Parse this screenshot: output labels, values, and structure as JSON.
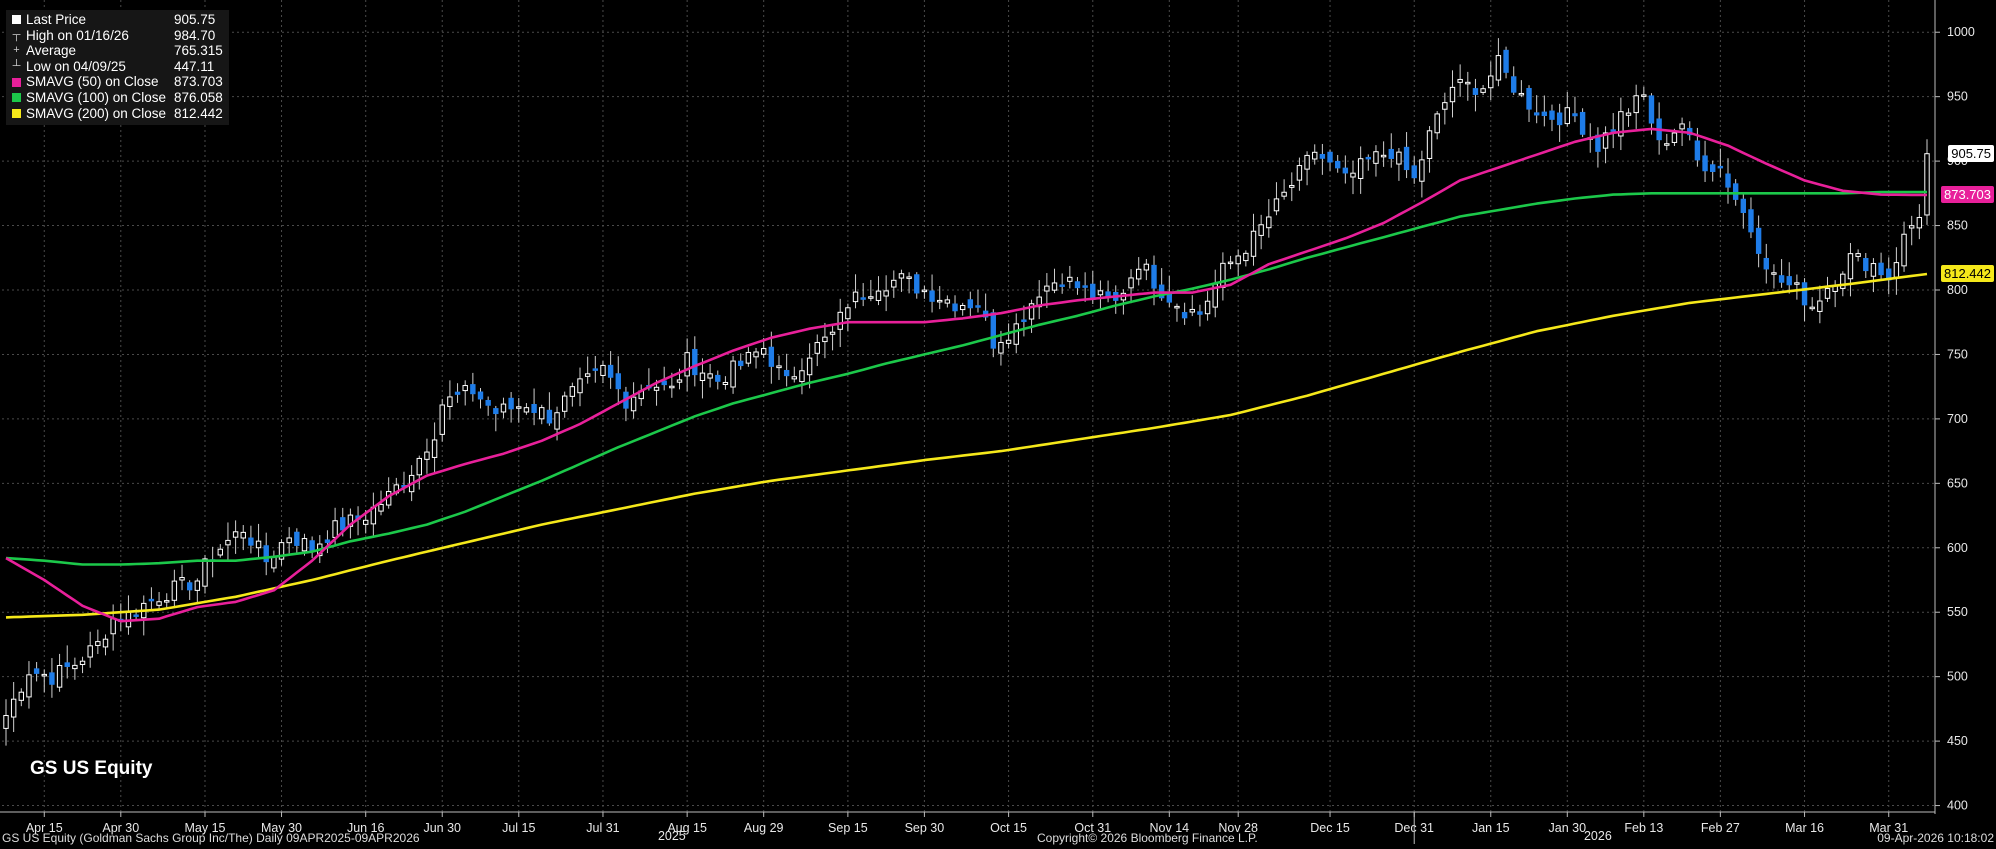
{
  "legend": [
    {
      "label": "Last Price",
      "value": "905.75",
      "marker": "square",
      "color": "#ffffff"
    },
    {
      "label": "High on 01/16/26",
      "value": "984.70",
      "marker": "high",
      "color": "#cccccc"
    },
    {
      "label": "Average",
      "value": "765.315",
      "marker": "avg",
      "color": "#cccccc"
    },
    {
      "label": "Low on 04/09/25",
      "value": "447.11",
      "marker": "low",
      "color": "#cccccc"
    },
    {
      "label": "SMAVG (50)  on Close",
      "value": "873.703",
      "marker": "square",
      "color": "#e8209a"
    },
    {
      "label": "SMAVG (100)  on Close",
      "value": "876.058",
      "marker": "square",
      "color": "#1cc84a"
    },
    {
      "label": "SMAVG (200)  on Close",
      "value": "812.442",
      "marker": "square",
      "color": "#f5e81a"
    }
  ],
  "ticker_label": "GS US Equity",
  "footer": {
    "left": "GS US Equity (Goldman Sachs Group Inc/The) Daily 09APR2025-09APR2026",
    "center": "Copyright© 2026 Bloomberg Finance L.P.",
    "right": "09-Apr-2026 10:18:02"
  },
  "price_tags": [
    {
      "value": "905.75",
      "bg": "#ffffff",
      "fg": "#000000"
    },
    {
      "value": "873.703",
      "bg": "#e8209a",
      "fg": "#ffffff"
    },
    {
      "value": "812.442",
      "bg": "#f5e81a",
      "fg": "#000000"
    }
  ],
  "chart_data": {
    "type": "candlestick",
    "y_ticks": [
      400,
      450,
      500,
      550,
      600,
      650,
      700,
      750,
      800,
      850,
      900,
      950,
      1000
    ],
    "ylim": [
      395,
      1025
    ],
    "x_ticks": [
      "Apr 15",
      "Apr 30",
      "May 15",
      "May 30",
      "Jun 16",
      "Jun 30",
      "Jul 15",
      "Jul 31",
      "Aug 15",
      "Aug 29",
      "Sep 15",
      "Sep 30",
      "Oct 15",
      "Oct 31",
      "Nov 14",
      "Nov 28",
      "Dec 15",
      "Dec 31",
      "Jan 15",
      "Jan 30",
      "Feb 13",
      "Feb 27",
      "Mar 16",
      "Mar 31"
    ],
    "x_tick_index": [
      5,
      15,
      26,
      36,
      47,
      57,
      67,
      78,
      89,
      99,
      110,
      120,
      131,
      142,
      152,
      161,
      173,
      184,
      194,
      204,
      214,
      224,
      235,
      246
    ],
    "year_labels": [
      {
        "label": "2025",
        "index": 87
      },
      {
        "label": "2026",
        "index": 208
      }
    ],
    "n_days": 252,
    "grid": true,
    "colors": {
      "up": "#ffffff",
      "down": "#1e7ce8",
      "sma50": "#e8209a",
      "sma100": "#1cc84a",
      "sma200": "#f5e81a"
    },
    "close_anchors": [
      [
        0,
        470
      ],
      [
        3,
        505
      ],
      [
        6,
        500
      ],
      [
        9,
        510
      ],
      [
        12,
        525
      ],
      [
        14,
        545
      ],
      [
        16,
        548
      ],
      [
        19,
        560
      ],
      [
        22,
        568
      ],
      [
        25,
        575
      ],
      [
        27,
        595
      ],
      [
        31,
        615
      ],
      [
        34,
        590
      ],
      [
        37,
        610
      ],
      [
        40,
        600
      ],
      [
        43,
        615
      ],
      [
        45,
        620
      ],
      [
        47,
        625
      ],
      [
        50,
        640
      ],
      [
        53,
        660
      ],
      [
        56,
        690
      ],
      [
        57,
        712
      ],
      [
        61,
        722
      ],
      [
        64,
        705
      ],
      [
        68,
        712
      ],
      [
        71,
        702
      ],
      [
        74,
        720
      ],
      [
        78,
        738
      ],
      [
        81,
        715
      ],
      [
        84,
        728
      ],
      [
        87,
        722
      ],
      [
        89,
        745
      ],
      [
        93,
        730
      ],
      [
        96,
        742
      ],
      [
        99,
        755
      ],
      [
        102,
        728
      ],
      [
        105,
        752
      ],
      [
        108,
        765
      ],
      [
        110,
        790
      ],
      [
        114,
        805
      ],
      [
        117,
        808
      ],
      [
        120,
        800
      ],
      [
        124,
        790
      ],
      [
        127,
        790
      ],
      [
        129,
        760
      ],
      [
        132,
        772
      ],
      [
        135,
        800
      ],
      [
        138,
        810
      ],
      [
        142,
        795
      ],
      [
        145,
        790
      ],
      [
        148,
        822
      ],
      [
        151,
        800
      ],
      [
        154,
        785
      ],
      [
        156,
        782
      ],
      [
        159,
        815
      ],
      [
        163,
        840
      ],
      [
        166,
        865
      ],
      [
        169,
        890
      ],
      [
        171,
        908
      ],
      [
        175,
        885
      ],
      [
        178,
        900
      ],
      [
        181,
        908
      ],
      [
        184,
        885
      ],
      [
        186,
        920
      ],
      [
        189,
        958
      ],
      [
        193,
        958
      ],
      [
        195,
        975
      ],
      [
        198,
        950
      ],
      [
        201,
        935
      ],
      [
        205,
        935
      ],
      [
        208,
        912
      ],
      [
        211,
        935
      ],
      [
        214,
        950
      ],
      [
        216,
        912
      ],
      [
        219,
        930
      ],
      [
        221,
        900
      ],
      [
        224,
        895
      ],
      [
        227,
        860
      ],
      [
        231,
        810
      ],
      [
        234,
        800
      ],
      [
        236,
        788
      ],
      [
        239,
        810
      ],
      [
        241,
        825
      ],
      [
        244,
        820
      ],
      [
        246,
        810
      ],
      [
        248,
        840
      ],
      [
        250,
        860
      ],
      [
        251,
        905.75
      ]
    ],
    "sma50_anchors": [
      [
        0,
        592
      ],
      [
        5,
        575
      ],
      [
        10,
        555
      ],
      [
        15,
        543
      ],
      [
        20,
        545
      ],
      [
        25,
        554
      ],
      [
        30,
        558
      ],
      [
        35,
        567
      ],
      [
        40,
        590
      ],
      [
        45,
        618
      ],
      [
        50,
        640
      ],
      [
        55,
        656
      ],
      [
        60,
        665
      ],
      [
        65,
        673
      ],
      [
        70,
        683
      ],
      [
        75,
        696
      ],
      [
        80,
        712
      ],
      [
        85,
        728
      ],
      [
        90,
        741
      ],
      [
        95,
        753
      ],
      [
        100,
        763
      ],
      [
        105,
        770
      ],
      [
        110,
        775
      ],
      [
        115,
        775
      ],
      [
        120,
        775
      ],
      [
        125,
        778
      ],
      [
        130,
        782
      ],
      [
        135,
        788
      ],
      [
        140,
        792
      ],
      [
        145,
        795
      ],
      [
        150,
        798
      ],
      [
        155,
        798
      ],
      [
        160,
        804
      ],
      [
        165,
        820
      ],
      [
        170,
        830
      ],
      [
        175,
        840
      ],
      [
        180,
        852
      ],
      [
        185,
        868
      ],
      [
        190,
        885
      ],
      [
        195,
        895
      ],
      [
        200,
        905
      ],
      [
        205,
        915
      ],
      [
        210,
        922
      ],
      [
        215,
        925
      ],
      [
        220,
        922
      ],
      [
        225,
        912
      ],
      [
        230,
        898
      ],
      [
        235,
        885
      ],
      [
        240,
        877
      ],
      [
        245,
        874
      ],
      [
        251,
        873.703
      ]
    ],
    "sma100_anchors": [
      [
        0,
        592
      ],
      [
        5,
        590
      ],
      [
        10,
        587
      ],
      [
        15,
        587
      ],
      [
        20,
        588
      ],
      [
        25,
        590
      ],
      [
        30,
        590
      ],
      [
        35,
        593
      ],
      [
        40,
        597
      ],
      [
        45,
        605
      ],
      [
        50,
        611
      ],
      [
        55,
        618
      ],
      [
        60,
        628
      ],
      [
        65,
        640
      ],
      [
        70,
        652
      ],
      [
        75,
        665
      ],
      [
        80,
        678
      ],
      [
        85,
        690
      ],
      [
        90,
        702
      ],
      [
        95,
        712
      ],
      [
        100,
        720
      ],
      [
        105,
        728
      ],
      [
        110,
        735
      ],
      [
        115,
        743
      ],
      [
        120,
        750
      ],
      [
        125,
        757
      ],
      [
        130,
        765
      ],
      [
        135,
        773
      ],
      [
        140,
        780
      ],
      [
        145,
        788
      ],
      [
        150,
        795
      ],
      [
        155,
        801
      ],
      [
        160,
        808
      ],
      [
        165,
        816
      ],
      [
        170,
        825
      ],
      [
        175,
        833
      ],
      [
        180,
        841
      ],
      [
        185,
        849
      ],
      [
        190,
        857
      ],
      [
        195,
        862
      ],
      [
        200,
        867
      ],
      [
        205,
        871
      ],
      [
        210,
        874
      ],
      [
        215,
        875
      ],
      [
        220,
        875
      ],
      [
        225,
        875
      ],
      [
        230,
        875
      ],
      [
        235,
        875
      ],
      [
        240,
        875
      ],
      [
        245,
        876
      ],
      [
        251,
        876.058
      ]
    ],
    "sma200_anchors": [
      [
        0,
        546
      ],
      [
        10,
        548
      ],
      [
        20,
        552
      ],
      [
        30,
        562
      ],
      [
        40,
        575
      ],
      [
        50,
        590
      ],
      [
        60,
        604
      ],
      [
        70,
        618
      ],
      [
        80,
        630
      ],
      [
        90,
        642
      ],
      [
        100,
        652
      ],
      [
        110,
        660
      ],
      [
        120,
        668
      ],
      [
        130,
        675
      ],
      [
        140,
        684
      ],
      [
        150,
        693
      ],
      [
        160,
        703
      ],
      [
        170,
        718
      ],
      [
        180,
        735
      ],
      [
        190,
        752
      ],
      [
        200,
        768
      ],
      [
        210,
        780
      ],
      [
        220,
        790
      ],
      [
        230,
        797
      ],
      [
        240,
        804
      ],
      [
        251,
        812.442
      ]
    ]
  }
}
